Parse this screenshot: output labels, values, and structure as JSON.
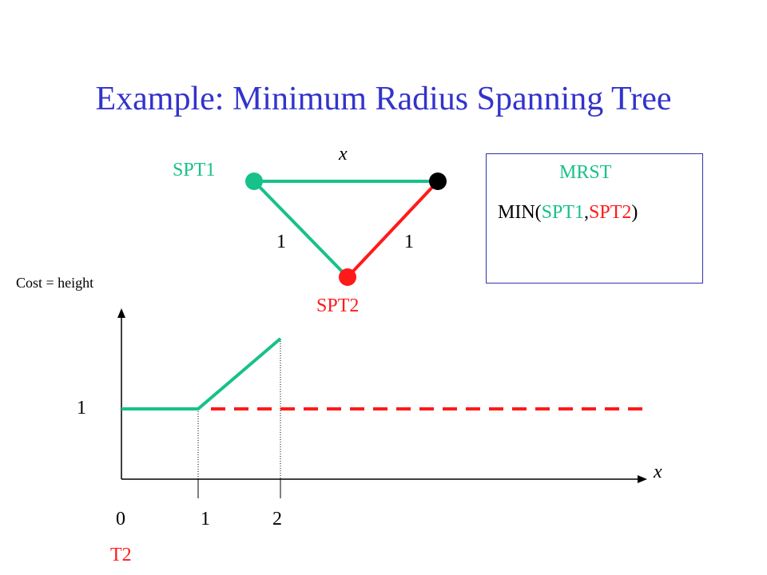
{
  "title": "Example: Minimum Radius Spanning Tree",
  "graph": {
    "label_spt1": "SPT1",
    "label_spt2": "SPT2",
    "edge_top_label": "x",
    "edge_left_label": "1",
    "edge_right_label": "1",
    "colors": {
      "spt1": "#17c18a",
      "spt2": "#ff1a1a",
      "node_black": "#000000"
    }
  },
  "mrst_box": {
    "heading": "MRST",
    "formula_prefix": "MIN(",
    "formula_spt1": "SPT1",
    "formula_sep": ",",
    "formula_spt2": "SPT2",
    "formula_suffix": ")"
  },
  "chart": {
    "ylabel": "Cost = height",
    "y_tick": "1",
    "x_axis_label": "x",
    "x_ticks": [
      "0",
      "1",
      "2"
    ],
    "t2_label": "T2"
  }
}
